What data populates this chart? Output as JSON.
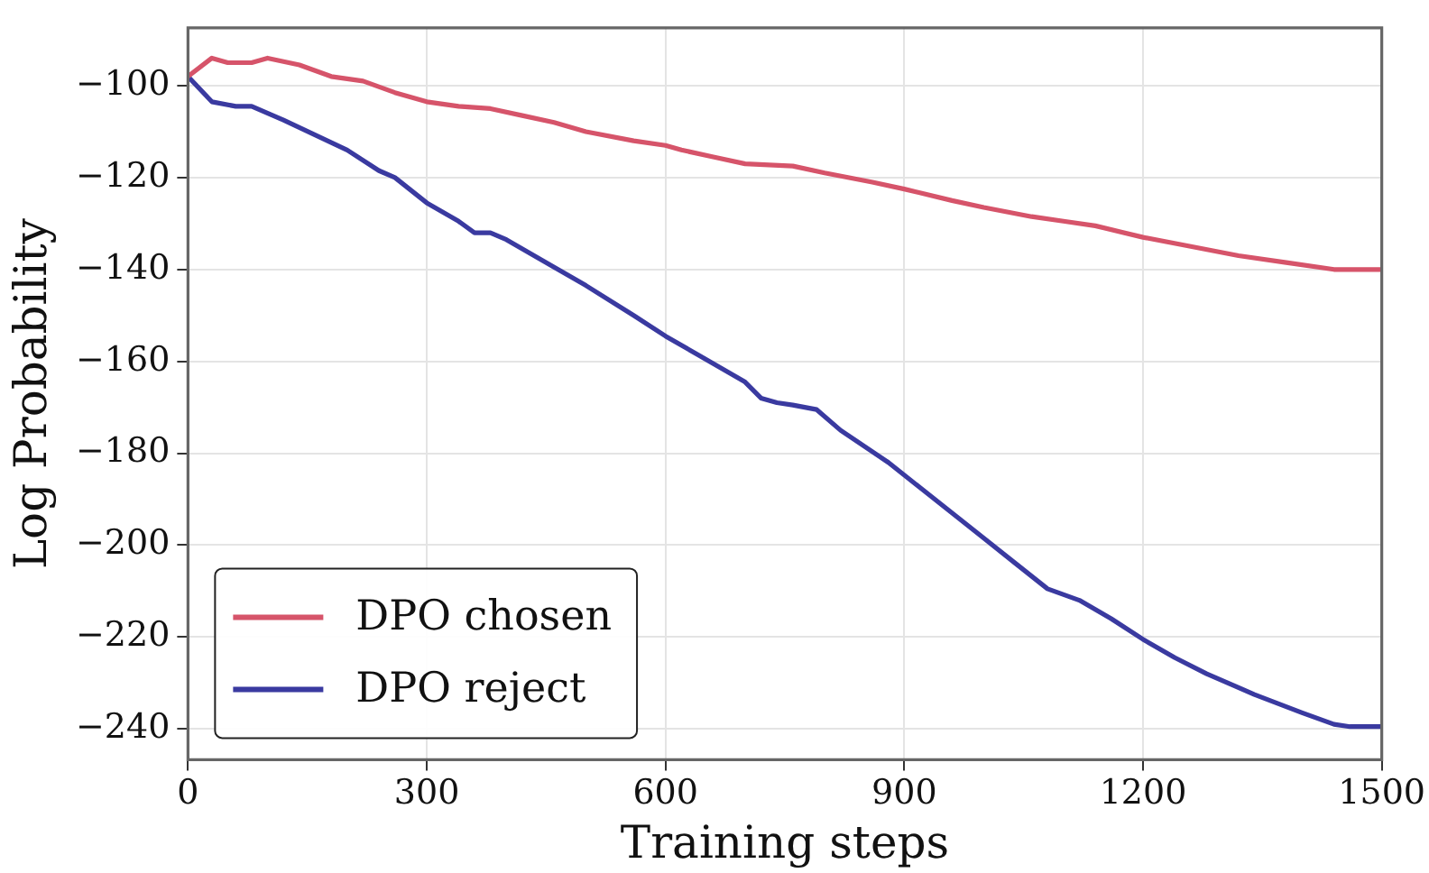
{
  "chart_data": {
    "type": "line",
    "xlabel": "Training steps",
    "ylabel": "Log Probability",
    "xlim": [
      0,
      1500
    ],
    "xticks": [
      0,
      300,
      600,
      900,
      1200,
      1500
    ],
    "ylim": [
      -246.7,
      -87.4
    ],
    "yticks": [
      -240,
      -220,
      -200,
      -180,
      -160,
      -140,
      -120,
      -100
    ],
    "grid": true,
    "legend": "bottom left",
    "marker": "none",
    "line_style": "solid",
    "series": [
      {
        "name": "DPO chosen",
        "color": "#d6546a",
        "x": [
          0,
          30,
          50,
          80,
          100,
          140,
          180,
          220,
          260,
          300,
          340,
          380,
          420,
          460,
          500,
          560,
          600,
          620,
          660,
          700,
          760,
          800,
          860,
          900,
          960,
          1000,
          1060,
          1100,
          1140,
          1200,
          1260,
          1320,
          1380,
          1440,
          1500
        ],
        "values": [
          -98,
          -94,
          -95,
          -95,
          -94,
          -95.5,
          -98,
          -99,
          -101.5,
          -103.5,
          -104.5,
          -105,
          -106.5,
          -108,
          -110,
          -112,
          -113,
          -114,
          -115.5,
          -117,
          -117.5,
          -119,
          -121,
          -122.5,
          -125,
          -126.5,
          -128.5,
          -129.5,
          -130.5,
          -133,
          -135,
          -137,
          -138.5,
          -140,
          -140
        ]
      },
      {
        "name": "DPO reject",
        "color": "#3a3aa0",
        "x": [
          0,
          30,
          60,
          80,
          120,
          200,
          240,
          260,
          300,
          340,
          360,
          380,
          400,
          460,
          500,
          560,
          600,
          640,
          700,
          720,
          740,
          760,
          790,
          820,
          880,
          920,
          960,
          1000,
          1040,
          1080,
          1120,
          1160,
          1200,
          1240,
          1280,
          1340,
          1400,
          1440,
          1460,
          1500
        ],
        "values": [
          -98,
          -103.5,
          -104.5,
          -104.5,
          -107.5,
          -114,
          -118.5,
          -120,
          -125.5,
          -129.5,
          -132,
          -132,
          -133.5,
          -139.5,
          -143.5,
          -150,
          -154.5,
          -158.5,
          -164.5,
          -168,
          -169,
          -169.5,
          -170.5,
          -175,
          -182,
          -187.5,
          -193,
          -198.5,
          -204,
          -209.5,
          -212,
          -216,
          -220.5,
          -224.5,
          -228,
          -232.5,
          -236.5,
          -239,
          -239.5,
          -239.5
        ]
      }
    ]
  }
}
